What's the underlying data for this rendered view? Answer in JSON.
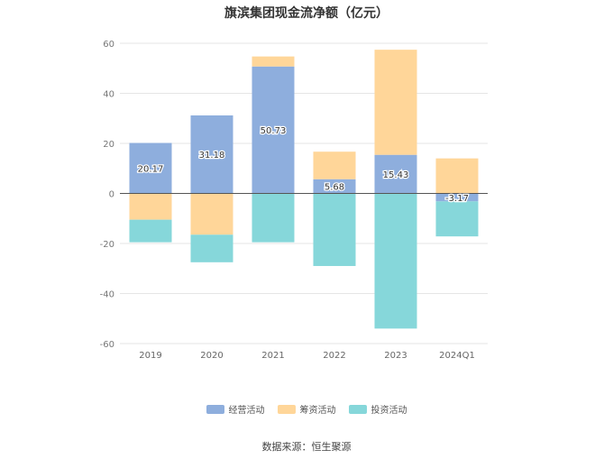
{
  "chart_data": {
    "type": "bar",
    "stacked": true,
    "title": "旗滨集团现金流净额（亿元）",
    "categories": [
      "2019",
      "2020",
      "2021",
      "2022",
      "2023",
      "2024Q1"
    ],
    "series": [
      {
        "name": "经营活动",
        "color": "#8eaedd",
        "values": [
          20.17,
          31.18,
          50.73,
          5.68,
          15.43,
          -3.17
        ]
      },
      {
        "name": "筹资活动",
        "color": "#ffd699",
        "values": [
          -10.5,
          -16.5,
          4.0,
          11.0,
          42.0,
          14.0
        ]
      },
      {
        "name": "投资活动",
        "color": "#86d7da",
        "values": [
          -9.0,
          -11.0,
          -19.5,
          -29.0,
          -54.0,
          -14.0
        ]
      }
    ],
    "data_labels_series": "经营活动",
    "ylim": [
      -60,
      60
    ],
    "yticks": [
      "-60",
      "-40",
      "-20",
      "0",
      "20",
      "40",
      "60"
    ],
    "grid": true,
    "legend_position": "bottom"
  },
  "source_text": "数据来源：恒生聚源"
}
